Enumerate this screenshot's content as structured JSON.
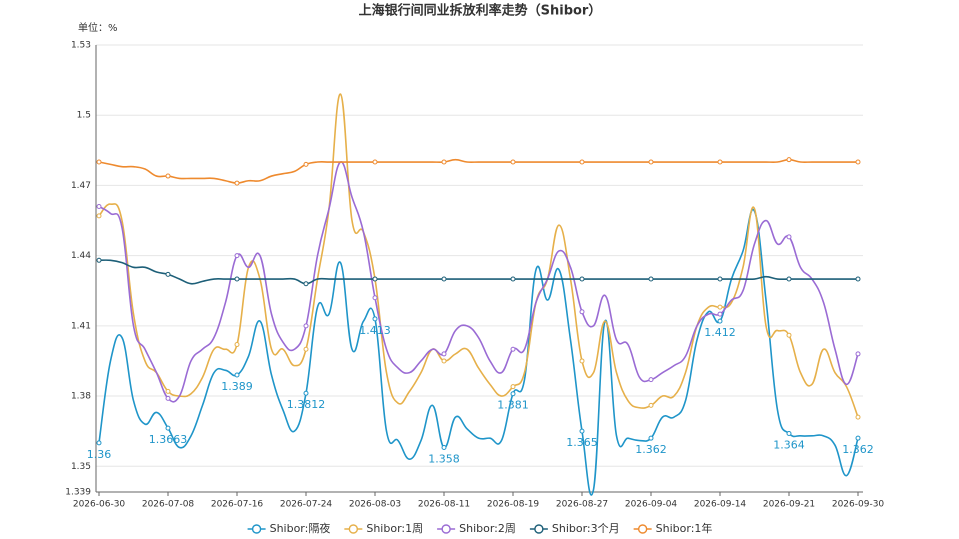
{
  "chart_data": {
    "type": "line",
    "title": "上海银行间同业拆放利率走势（Shibor）",
    "y_unit_label": "单位：%",
    "categories": [
      "2026-06-30",
      null,
      null,
      null,
      null,
      null,
      "2026-07-08",
      null,
      null,
      null,
      null,
      null,
      "2026-07-16",
      null,
      null,
      null,
      null,
      null,
      "2026-07-24",
      null,
      null,
      null,
      null,
      null,
      "2026-08-03",
      null,
      null,
      null,
      null,
      null,
      "2026-08-11",
      null,
      null,
      null,
      null,
      null,
      "2026-08-19",
      null,
      null,
      null,
      null,
      null,
      "2026-08-27",
      null,
      null,
      null,
      null,
      null,
      "2026-09-04",
      null,
      null,
      null,
      null,
      null,
      "2026-09-14",
      null,
      null,
      null,
      null,
      null,
      "2026-09-21",
      null,
      null,
      null,
      null,
      null,
      "2026-09-30"
    ],
    "ylim": [
      1.339,
      1.53
    ],
    "yticks": [
      1.339,
      1.35,
      1.38,
      1.41,
      1.44,
      1.47,
      1.5,
      1.53
    ],
    "grid": true,
    "legend": "bottom",
    "series": [
      {
        "name": "Shibor:隔夜",
        "color": "#1f95c9",
        "values": [
          1.36,
          1.395,
          1.405,
          1.378,
          1.368,
          1.373,
          1.3663,
          1.358,
          1.363,
          1.376,
          1.39,
          1.391,
          1.389,
          1.397,
          1.412,
          1.389,
          1.374,
          1.365,
          1.3812,
          1.418,
          1.415,
          1.437,
          1.4,
          1.412,
          1.413,
          1.365,
          1.361,
          1.353,
          1.361,
          1.376,
          1.358,
          1.371,
          1.366,
          1.362,
          1.362,
          1.361,
          1.381,
          1.387,
          1.434,
          1.421,
          1.434,
          1.404,
          1.365,
          1.34,
          1.412,
          1.363,
          1.362,
          1.361,
          1.362,
          1.371,
          1.371,
          1.378,
          1.404,
          1.416,
          1.412,
          1.43,
          1.442,
          1.459,
          1.421,
          1.374,
          1.364,
          1.363,
          1.363,
          1.363,
          1.359,
          1.346,
          1.362
        ]
      },
      {
        "name": "Shibor:1周",
        "color": "#e6b04a",
        "values": [
          1.457,
          1.462,
          1.455,
          1.415,
          1.395,
          1.39,
          1.382,
          1.38,
          1.381,
          1.388,
          1.4,
          1.4,
          1.402,
          1.435,
          1.43,
          1.4,
          1.4,
          1.393,
          1.4,
          1.43,
          1.46,
          1.509,
          1.455,
          1.45,
          1.43,
          1.39,
          1.377,
          1.382,
          1.39,
          1.4,
          1.395,
          1.398,
          1.4,
          1.392,
          1.385,
          1.38,
          1.384,
          1.39,
          1.42,
          1.43,
          1.453,
          1.43,
          1.395,
          1.39,
          1.412,
          1.39,
          1.378,
          1.375,
          1.376,
          1.38,
          1.38,
          1.39,
          1.41,
          1.418,
          1.418,
          1.42,
          1.435,
          1.46,
          1.41,
          1.408,
          1.406,
          1.39,
          1.385,
          1.4,
          1.39,
          1.384,
          1.371
        ]
      },
      {
        "name": "Shibor:2周",
        "color": "#9a6bd4",
        "values": [
          1.461,
          1.458,
          1.452,
          1.41,
          1.4,
          1.39,
          1.379,
          1.38,
          1.395,
          1.4,
          1.405,
          1.42,
          1.44,
          1.435,
          1.44,
          1.415,
          1.403,
          1.4,
          1.41,
          1.44,
          1.46,
          1.48,
          1.465,
          1.45,
          1.422,
          1.4,
          1.392,
          1.39,
          1.395,
          1.4,
          1.398,
          1.408,
          1.41,
          1.405,
          1.395,
          1.39,
          1.4,
          1.4,
          1.42,
          1.43,
          1.442,
          1.435,
          1.416,
          1.41,
          1.423,
          1.404,
          1.402,
          1.388,
          1.387,
          1.39,
          1.393,
          1.397,
          1.41,
          1.415,
          1.415,
          1.421,
          1.425,
          1.445,
          1.455,
          1.445,
          1.448,
          1.435,
          1.43,
          1.42,
          1.4,
          1.385,
          1.398
        ]
      },
      {
        "name": "Shibor:3个月",
        "color": "#1d5f78",
        "values": [
          1.438,
          1.438,
          1.437,
          1.435,
          1.435,
          1.433,
          1.432,
          1.43,
          1.428,
          1.429,
          1.43,
          1.43,
          1.43,
          1.43,
          1.43,
          1.43,
          1.43,
          1.43,
          1.428,
          1.43,
          1.43,
          1.43,
          1.43,
          1.43,
          1.43,
          1.43,
          1.43,
          1.43,
          1.43,
          1.43,
          1.43,
          1.43,
          1.43,
          1.43,
          1.43,
          1.43,
          1.43,
          1.43,
          1.43,
          1.43,
          1.43,
          1.43,
          1.43,
          1.43,
          1.43,
          1.43,
          1.43,
          1.43,
          1.43,
          1.43,
          1.43,
          1.43,
          1.43,
          1.43,
          1.43,
          1.43,
          1.43,
          1.43,
          1.431,
          1.43,
          1.43,
          1.43,
          1.43,
          1.43,
          1.43,
          1.43,
          1.43
        ]
      },
      {
        "name": "Shibor:1年",
        "color": "#ee8a2e",
        "values": [
          1.48,
          1.479,
          1.478,
          1.478,
          1.477,
          1.474,
          1.474,
          1.473,
          1.473,
          1.473,
          1.473,
          1.472,
          1.471,
          1.472,
          1.472,
          1.474,
          1.475,
          1.476,
          1.479,
          1.48,
          1.48,
          1.48,
          1.48,
          1.48,
          1.48,
          1.48,
          1.48,
          1.48,
          1.48,
          1.48,
          1.48,
          1.481,
          1.48,
          1.48,
          1.48,
          1.48,
          1.48,
          1.48,
          1.48,
          1.48,
          1.48,
          1.48,
          1.48,
          1.48,
          1.48,
          1.48,
          1.48,
          1.48,
          1.48,
          1.48,
          1.48,
          1.48,
          1.48,
          1.48,
          1.48,
          1.48,
          1.48,
          1.48,
          1.48,
          1.48,
          1.481,
          1.48,
          1.48,
          1.48,
          1.48,
          1.48,
          1.48
        ]
      }
    ],
    "labeled_series": 0
  }
}
